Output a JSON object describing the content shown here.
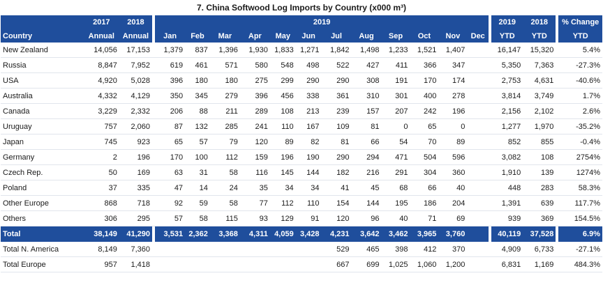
{
  "title": "7. China Softwood Log Imports by Country  (x000 m³)",
  "header": {
    "country": "Country",
    "y2017": "2017",
    "y2018": "2018",
    "annual_a": "Annual",
    "annual_b": "Annual",
    "y2019": "2019",
    "months": [
      "Jan",
      "Feb",
      "Mar",
      "Apr",
      "May",
      "Jun",
      "Jul",
      "Aug",
      "Sep",
      "Oct",
      "Nov",
      "Dec"
    ],
    "ytd2019": "2019",
    "ytd2018": "2018",
    "ytd_a": "YTD",
    "ytd_b": "YTD",
    "pct_change": "% Change",
    "pct_ytd": "YTD"
  },
  "rows": [
    {
      "country": "New Zealand",
      "a2017": "14,056",
      "a2018": "17,153",
      "m": [
        "1,379",
        "837",
        "1,396",
        "1,930",
        "1,833",
        "1,271",
        "1,842",
        "1,498",
        "1,233",
        "1,521",
        "1,407",
        ""
      ],
      "ytd2019": "16,147",
      "ytd2018": "15,320",
      "pct": "5.4%"
    },
    {
      "country": "Russia",
      "a2017": "8,847",
      "a2018": "7,952",
      "m": [
        "619",
        "461",
        "571",
        "580",
        "548",
        "498",
        "522",
        "427",
        "411",
        "366",
        "347",
        ""
      ],
      "ytd2019": "5,350",
      "ytd2018": "7,363",
      "pct": "-27.3%"
    },
    {
      "country": "USA",
      "a2017": "4,920",
      "a2018": "5,028",
      "m": [
        "396",
        "180",
        "180",
        "275",
        "299",
        "290",
        "290",
        "308",
        "191",
        "170",
        "174",
        ""
      ],
      "ytd2019": "2,753",
      "ytd2018": "4,631",
      "pct": "-40.6%"
    },
    {
      "country": "Australia",
      "a2017": "4,332",
      "a2018": "4,129",
      "m": [
        "350",
        "345",
        "279",
        "396",
        "456",
        "338",
        "361",
        "310",
        "301",
        "400",
        "278",
        ""
      ],
      "ytd2019": "3,814",
      "ytd2018": "3,749",
      "pct": "1.7%"
    },
    {
      "country": "Canada",
      "a2017": "3,229",
      "a2018": "2,332",
      "m": [
        "206",
        "88",
        "211",
        "289",
        "108",
        "213",
        "239",
        "157",
        "207",
        "242",
        "196",
        ""
      ],
      "ytd2019": "2,156",
      "ytd2018": "2,102",
      "pct": "2.6%"
    },
    {
      "country": "Uruguay",
      "a2017": "757",
      "a2018": "2,060",
      "m": [
        "87",
        "132",
        "285",
        "241",
        "110",
        "167",
        "109",
        "81",
        "0",
        "65",
        "0",
        ""
      ],
      "ytd2019": "1,277",
      "ytd2018": "1,970",
      "pct": "-35.2%"
    },
    {
      "country": "Japan",
      "a2017": "745",
      "a2018": "923",
      "m": [
        "65",
        "57",
        "79",
        "120",
        "89",
        "82",
        "81",
        "66",
        "54",
        "70",
        "89",
        ""
      ],
      "ytd2019": "852",
      "ytd2018": "855",
      "pct": "-0.4%"
    },
    {
      "country": "Germany",
      "a2017": "2",
      "a2018": "196",
      "m": [
        "170",
        "100",
        "112",
        "159",
        "196",
        "190",
        "290",
        "294",
        "471",
        "504",
        "596",
        ""
      ],
      "ytd2019": "3,082",
      "ytd2018": "108",
      "pct": "2754%"
    },
    {
      "country": "Czech Rep.",
      "a2017": "50",
      "a2018": "169",
      "m": [
        "63",
        "31",
        "58",
        "116",
        "145",
        "144",
        "182",
        "216",
        "291",
        "304",
        "360",
        ""
      ],
      "ytd2019": "1,910",
      "ytd2018": "139",
      "pct": "1274%"
    },
    {
      "country": "Poland",
      "a2017": "37",
      "a2018": "335",
      "m": [
        "47",
        "14",
        "24",
        "35",
        "34",
        "34",
        "41",
        "45",
        "68",
        "66",
        "40",
        ""
      ],
      "ytd2019": "448",
      "ytd2018": "283",
      "pct": "58.3%"
    },
    {
      "country": "Other Europe",
      "a2017": "868",
      "a2018": "718",
      "m": [
        "92",
        "59",
        "58",
        "77",
        "112",
        "110",
        "154",
        "144",
        "195",
        "186",
        "204",
        ""
      ],
      "ytd2019": "1,391",
      "ytd2018": "639",
      "pct": "117.7%"
    },
    {
      "country": "Others",
      "a2017": "306",
      "a2018": "295",
      "m": [
        "57",
        "58",
        "115",
        "93",
        "129",
        "91",
        "120",
        "96",
        "40",
        "71",
        "69",
        ""
      ],
      "ytd2019": "939",
      "ytd2018": "369",
      "pct": "154.5%"
    }
  ],
  "total": {
    "country": "Total",
    "a2017": "38,149",
    "a2018": "41,290",
    "m": [
      "3,531",
      "2,362",
      "3,368",
      "4,311",
      "4,059",
      "3,428",
      "4,231",
      "3,642",
      "3,462",
      "3,965",
      "3,760",
      ""
    ],
    "ytd2019": "40,119",
    "ytd2018": "37,528",
    "pct": "6.9%"
  },
  "subtotals": [
    {
      "country": "Total N. America",
      "a2017": "8,149",
      "a2018": "7,360",
      "m": [
        "",
        "",
        "",
        "",
        "",
        "",
        "529",
        "465",
        "398",
        "412",
        "370",
        ""
      ],
      "ytd2019": "4,909",
      "ytd2018": "6,733",
      "pct": "-27.1%"
    },
    {
      "country": "Total Europe",
      "a2017": "957",
      "a2018": "1,418",
      "m": [
        "",
        "",
        "",
        "",
        "",
        "",
        "667",
        "699",
        "1,025",
        "1,060",
        "1,200",
        ""
      ],
      "ytd2019": "6,831",
      "ytd2018": "1,169",
      "pct": "484.3%"
    }
  ],
  "colors": {
    "header_bg": "#1f4e9c",
    "header_text": "#ffffff"
  }
}
